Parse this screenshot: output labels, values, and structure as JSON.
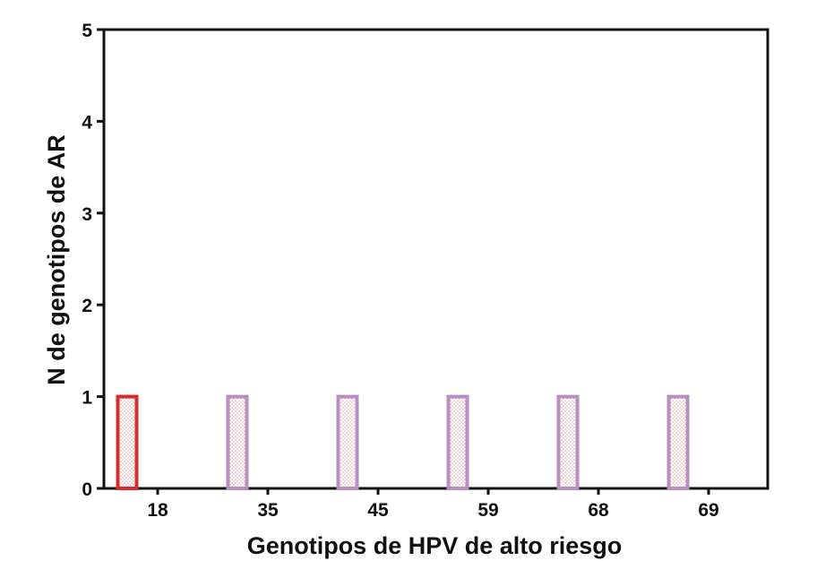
{
  "chart_data": {
    "type": "bar",
    "title": "",
    "xlabel": "Genotipos de HPV de alto riesgo",
    "ylabel": "N de genotipos de AR",
    "categories": [
      "18",
      "35",
      "45",
      "59",
      "68",
      "69"
    ],
    "values": [
      1,
      1,
      1,
      1,
      1,
      1
    ],
    "ylim": [
      0,
      5
    ],
    "yticks": [
      0,
      1,
      2,
      3,
      4,
      5
    ],
    "grid": false,
    "bar_fill": "pattern-dotted",
    "bar_colors": [
      "#d92b2b",
      "#b98ec3",
      "#b98ec3",
      "#b98ec3",
      "#b98ec3",
      "#b98ec3"
    ],
    "pattern_color": "#e8b6b6",
    "axis_color": "#111111"
  }
}
